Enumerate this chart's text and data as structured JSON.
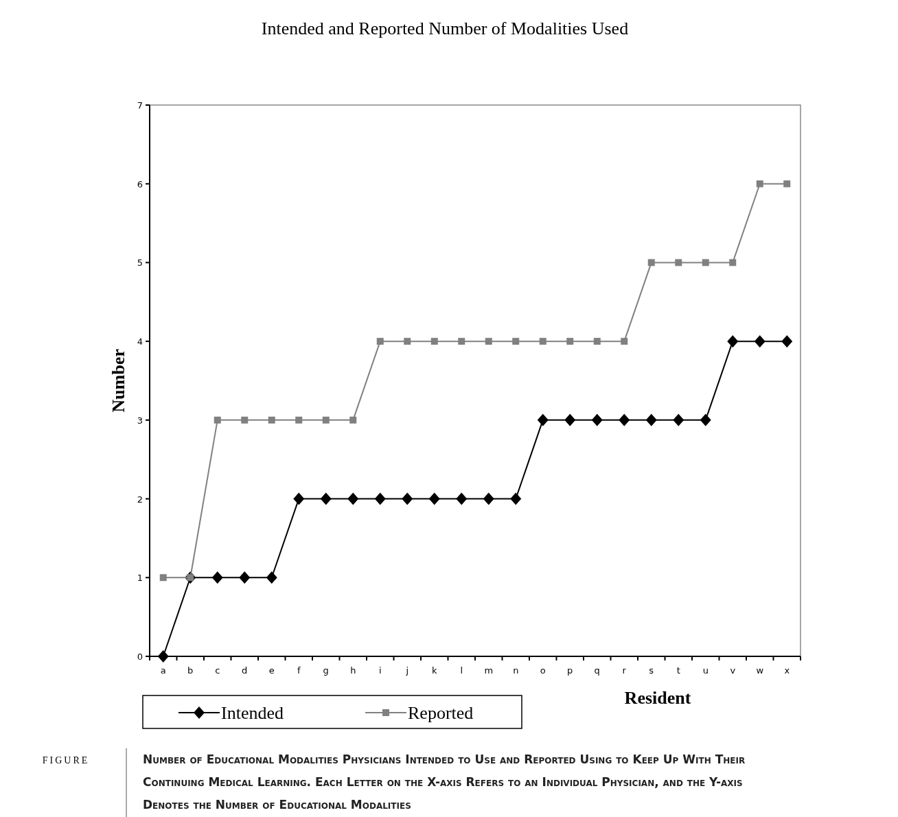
{
  "chart_data": {
    "type": "line",
    "title": "Intended and Reported Number of Modalities Used",
    "xlabel": "Resident",
    "ylabel": "Number",
    "categories": [
      "a",
      "b",
      "c",
      "d",
      "e",
      "f",
      "g",
      "h",
      "i",
      "j",
      "k",
      "l",
      "m",
      "n",
      "o",
      "p",
      "q",
      "r",
      "s",
      "t",
      "u",
      "v",
      "w",
      "x"
    ],
    "series": [
      {
        "name": "Intended",
        "color": "#000000",
        "marker": "diamond",
        "values": [
          0,
          1,
          1,
          1,
          1,
          2,
          2,
          2,
          2,
          2,
          2,
          2,
          2,
          2,
          3,
          3,
          3,
          3,
          3,
          3,
          3,
          4,
          4,
          4
        ]
      },
      {
        "name": "Reported",
        "color": "#808080",
        "marker": "square",
        "values": [
          1,
          1,
          3,
          3,
          3,
          3,
          3,
          3,
          4,
          4,
          4,
          4,
          4,
          4,
          4,
          4,
          4,
          4,
          5,
          5,
          5,
          5,
          6,
          6
        ]
      }
    ],
    "ylim": [
      0,
      7
    ],
    "yticks": [
      0,
      1,
      2,
      3,
      4,
      5,
      6,
      7
    ],
    "grid": false,
    "legend": "bottom left",
    "line_style": "solid",
    "annotations": [
      "FIGURE",
      "Number of Educational Modalities Physicians Intended to Use and Reported Using to Keep Up With Their Continuing Medical Learning. Each Letter on the X-axis Refers to an Individual Physician, and the Y-axis Denotes the Number of Educational Modalities"
    ]
  }
}
